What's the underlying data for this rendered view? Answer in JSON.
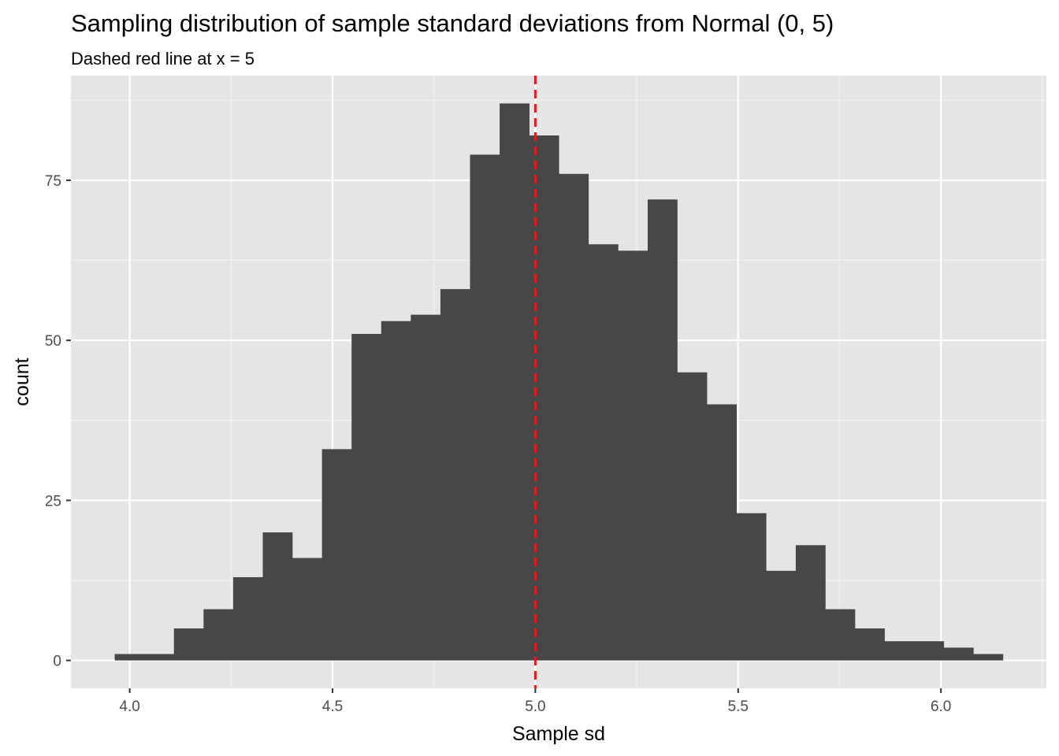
{
  "chart_data": {
    "type": "bar",
    "title": "Sampling distribution of sample standard deviations from Normal (0, 5)",
    "subtitle": "Dashed red line at x = 5",
    "xlabel": "Sample sd",
    "ylabel": "count",
    "xlim": [
      3.855,
      6.26
    ],
    "ylim": [
      -4.35,
      91.35
    ],
    "x_ticks": [
      4.0,
      4.5,
      5.0,
      5.5,
      6.0
    ],
    "x_tick_labels": [
      "4.0",
      "4.5",
      "5.0",
      "5.5",
      "6.0"
    ],
    "y_ticks": [
      0,
      25,
      50,
      75
    ],
    "y_tick_labels": [
      "0",
      "25",
      "50",
      "75"
    ],
    "bin_edges": [
      3.963,
      4.036,
      4.109,
      4.182,
      4.255,
      4.328,
      4.401,
      4.474,
      4.547,
      4.62,
      4.693,
      4.766,
      4.839,
      4.912,
      4.985,
      5.058,
      5.131,
      5.204,
      5.277,
      5.35,
      5.423,
      5.496,
      5.569,
      5.642,
      5.715,
      5.788,
      5.861,
      5.934,
      6.007,
      6.08,
      6.153
    ],
    "counts": [
      1,
      1,
      5,
      8,
      13,
      20,
      16,
      33,
      51,
      53,
      54,
      58,
      79,
      87,
      82,
      76,
      65,
      64,
      72,
      45,
      40,
      23,
      14,
      18,
      8,
      5,
      3,
      3,
      2,
      1
    ],
    "vline": {
      "x": 5,
      "color": "#e41a1c",
      "style": "dashed"
    },
    "bar_color": "#474747",
    "panel_background": "#e5e5e5",
    "grid": true
  }
}
